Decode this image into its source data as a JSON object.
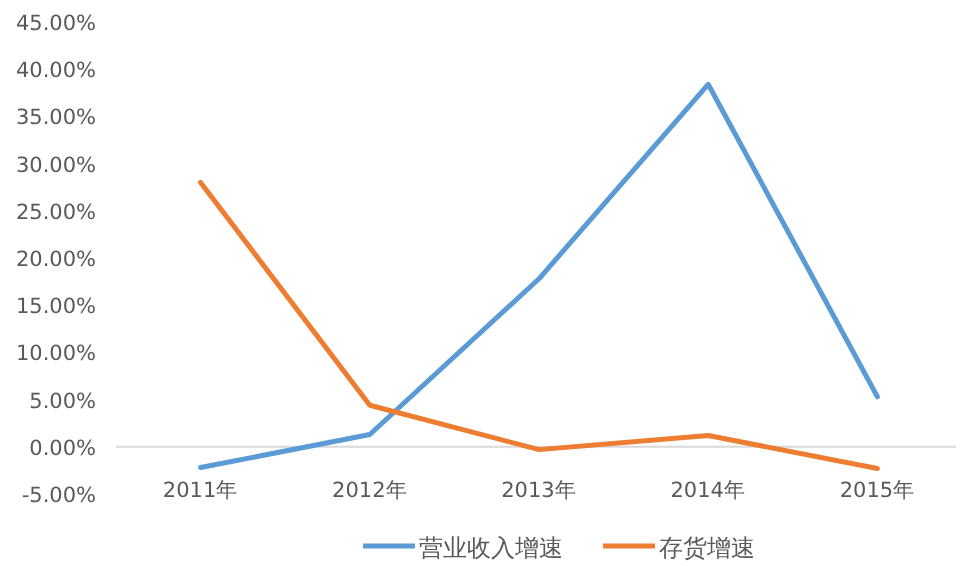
{
  "chart_data": {
    "type": "line",
    "categories": [
      "2011年",
      "2012年",
      "2013年",
      "2014年",
      "2015年"
    ],
    "series": [
      {
        "name": "营业收入增速",
        "color": "#5b9bd5",
        "values": [
          -2.2,
          1.3,
          17.8,
          38.4,
          5.3
        ]
      },
      {
        "name": "存货增速",
        "color": "#ed7d31",
        "values": [
          28.0,
          4.4,
          -0.3,
          1.2,
          -2.3
        ]
      }
    ],
    "ylim": [
      -5,
      45
    ],
    "yticks": [
      {
        "value": -5,
        "label": "-5.00%"
      },
      {
        "value": 0,
        "label": "0.00%"
      },
      {
        "value": 5,
        "label": "5.00%"
      },
      {
        "value": 10,
        "label": "10.00%"
      },
      {
        "value": 15,
        "label": "15.00%"
      },
      {
        "value": 20,
        "label": "20.00%"
      },
      {
        "value": 25,
        "label": "25.00%"
      },
      {
        "value": 30,
        "label": "30.00%"
      },
      {
        "value": 35,
        "label": "35.00%"
      },
      {
        "value": 40,
        "label": "40.00%"
      },
      {
        "value": 45,
        "label": "45.00%"
      }
    ],
    "grid": false,
    "legend": "bottom",
    "marker": "none",
    "line_style": "solid"
  }
}
